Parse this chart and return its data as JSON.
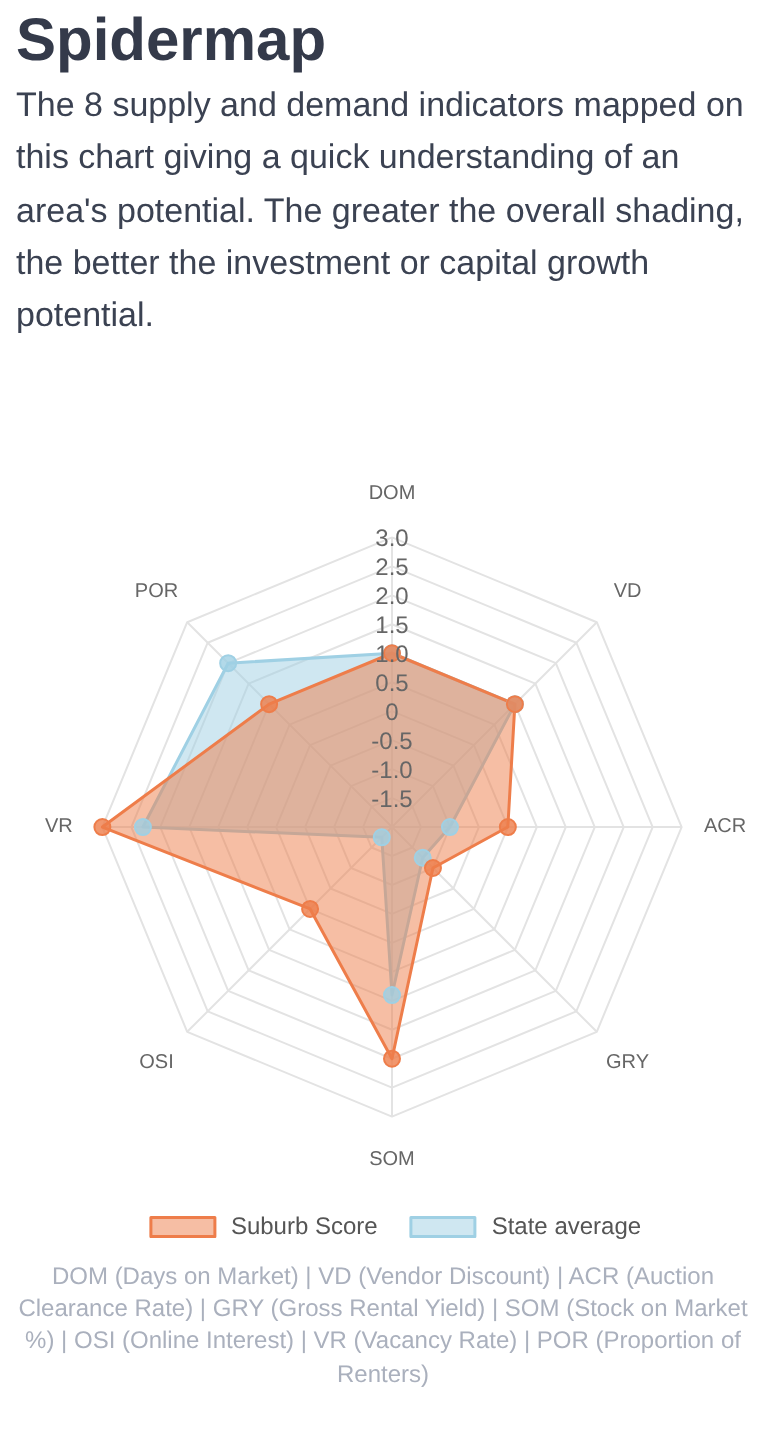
{
  "chart_data": {
    "type": "radar",
    "title": "Spidermap",
    "subtitle": "The 8 supply and demand indicators mapped on this chart giving a quick understanding of an area's potential. The greater the overall shading, the better the investment or capital growth potential.",
    "categories": [
      "DOM",
      "VD",
      "ACR",
      "GRY",
      "SOM",
      "OSI",
      "VR",
      "POR"
    ],
    "series": [
      {
        "name": "Suburb Score",
        "color": "#ee7d4a",
        "values": [
          1.0,
          1.0,
          0.0,
          -1.0,
          2.0,
          0.0,
          3.0,
          1.0
        ]
      },
      {
        "name": "State average",
        "color": "#9fd0e4",
        "values": [
          1.0,
          1.0,
          -1.0,
          -1.25,
          0.9,
          -1.75,
          2.3,
          2.0
        ]
      }
    ],
    "ylim": [
      -2,
      3
    ],
    "yticks": [
      {
        "value": 3,
        "label": "3.0"
      },
      2.5,
      {
        "value": 2,
        "label": "2.0"
      },
      1.5,
      {
        "value": 1,
        "label": "1.0"
      },
      0.5,
      0,
      -0.5,
      {
        "value": -1,
        "label": "-1.0"
      },
      -1.5
    ],
    "grid": true,
    "legend": "bottom",
    "marker": "circle",
    "annotations": [
      "DOM (Days on Market) | VD (Vendor Discount) | ACR (Auction Clearance Rate) | GRY (Gross Rental Yield) | SOM (Stock on Market %) | OSI (Online Interest) | VR (Vacancy Rate) | POR (Proportion of Renters)"
    ]
  }
}
